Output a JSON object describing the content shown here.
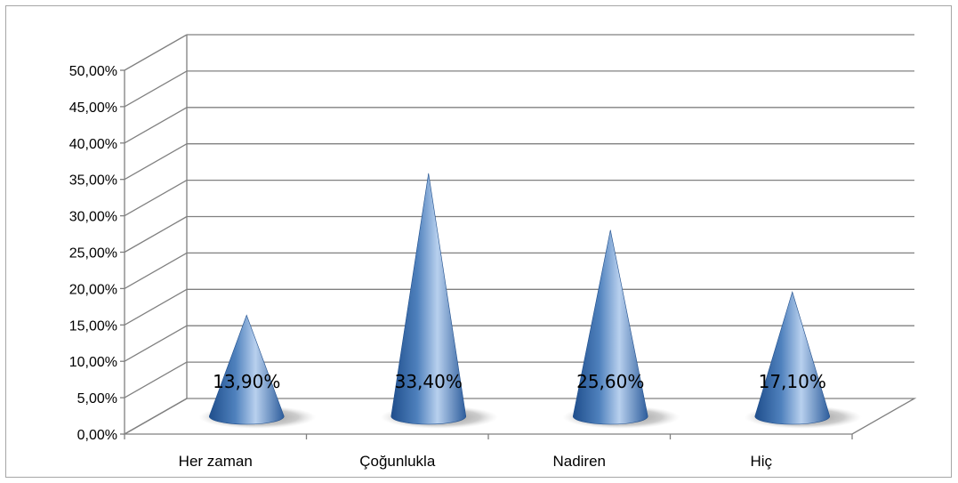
{
  "chart_data": {
    "type": "bar",
    "style": "3d-cone",
    "categories": [
      "Her zaman",
      "Çoğunlukla",
      "Nadiren",
      "Hiç"
    ],
    "values": [
      13.9,
      33.4,
      25.6,
      17.1
    ],
    "data_labels": [
      "13,90%",
      "33,40%",
      "25,60%",
      "17,10%"
    ],
    "y_tick_labels": [
      "0,00%",
      "5,00%",
      "10,00%",
      "15,00%",
      "20,00%",
      "25,00%",
      "30,00%",
      "35,00%",
      "40,00%",
      "45,00%",
      "50,00%"
    ],
    "ylim": [
      0,
      50
    ],
    "y_step": 5,
    "title": "",
    "xlabel": "",
    "ylabel": "",
    "grid": true,
    "legend": "none",
    "colors": {
      "cone_dark": "#1f4e8c",
      "cone_mid": "#4f81bd",
      "cone_light": "#b8d0ee",
      "grid": "#808080",
      "axis": "#808080"
    }
  }
}
